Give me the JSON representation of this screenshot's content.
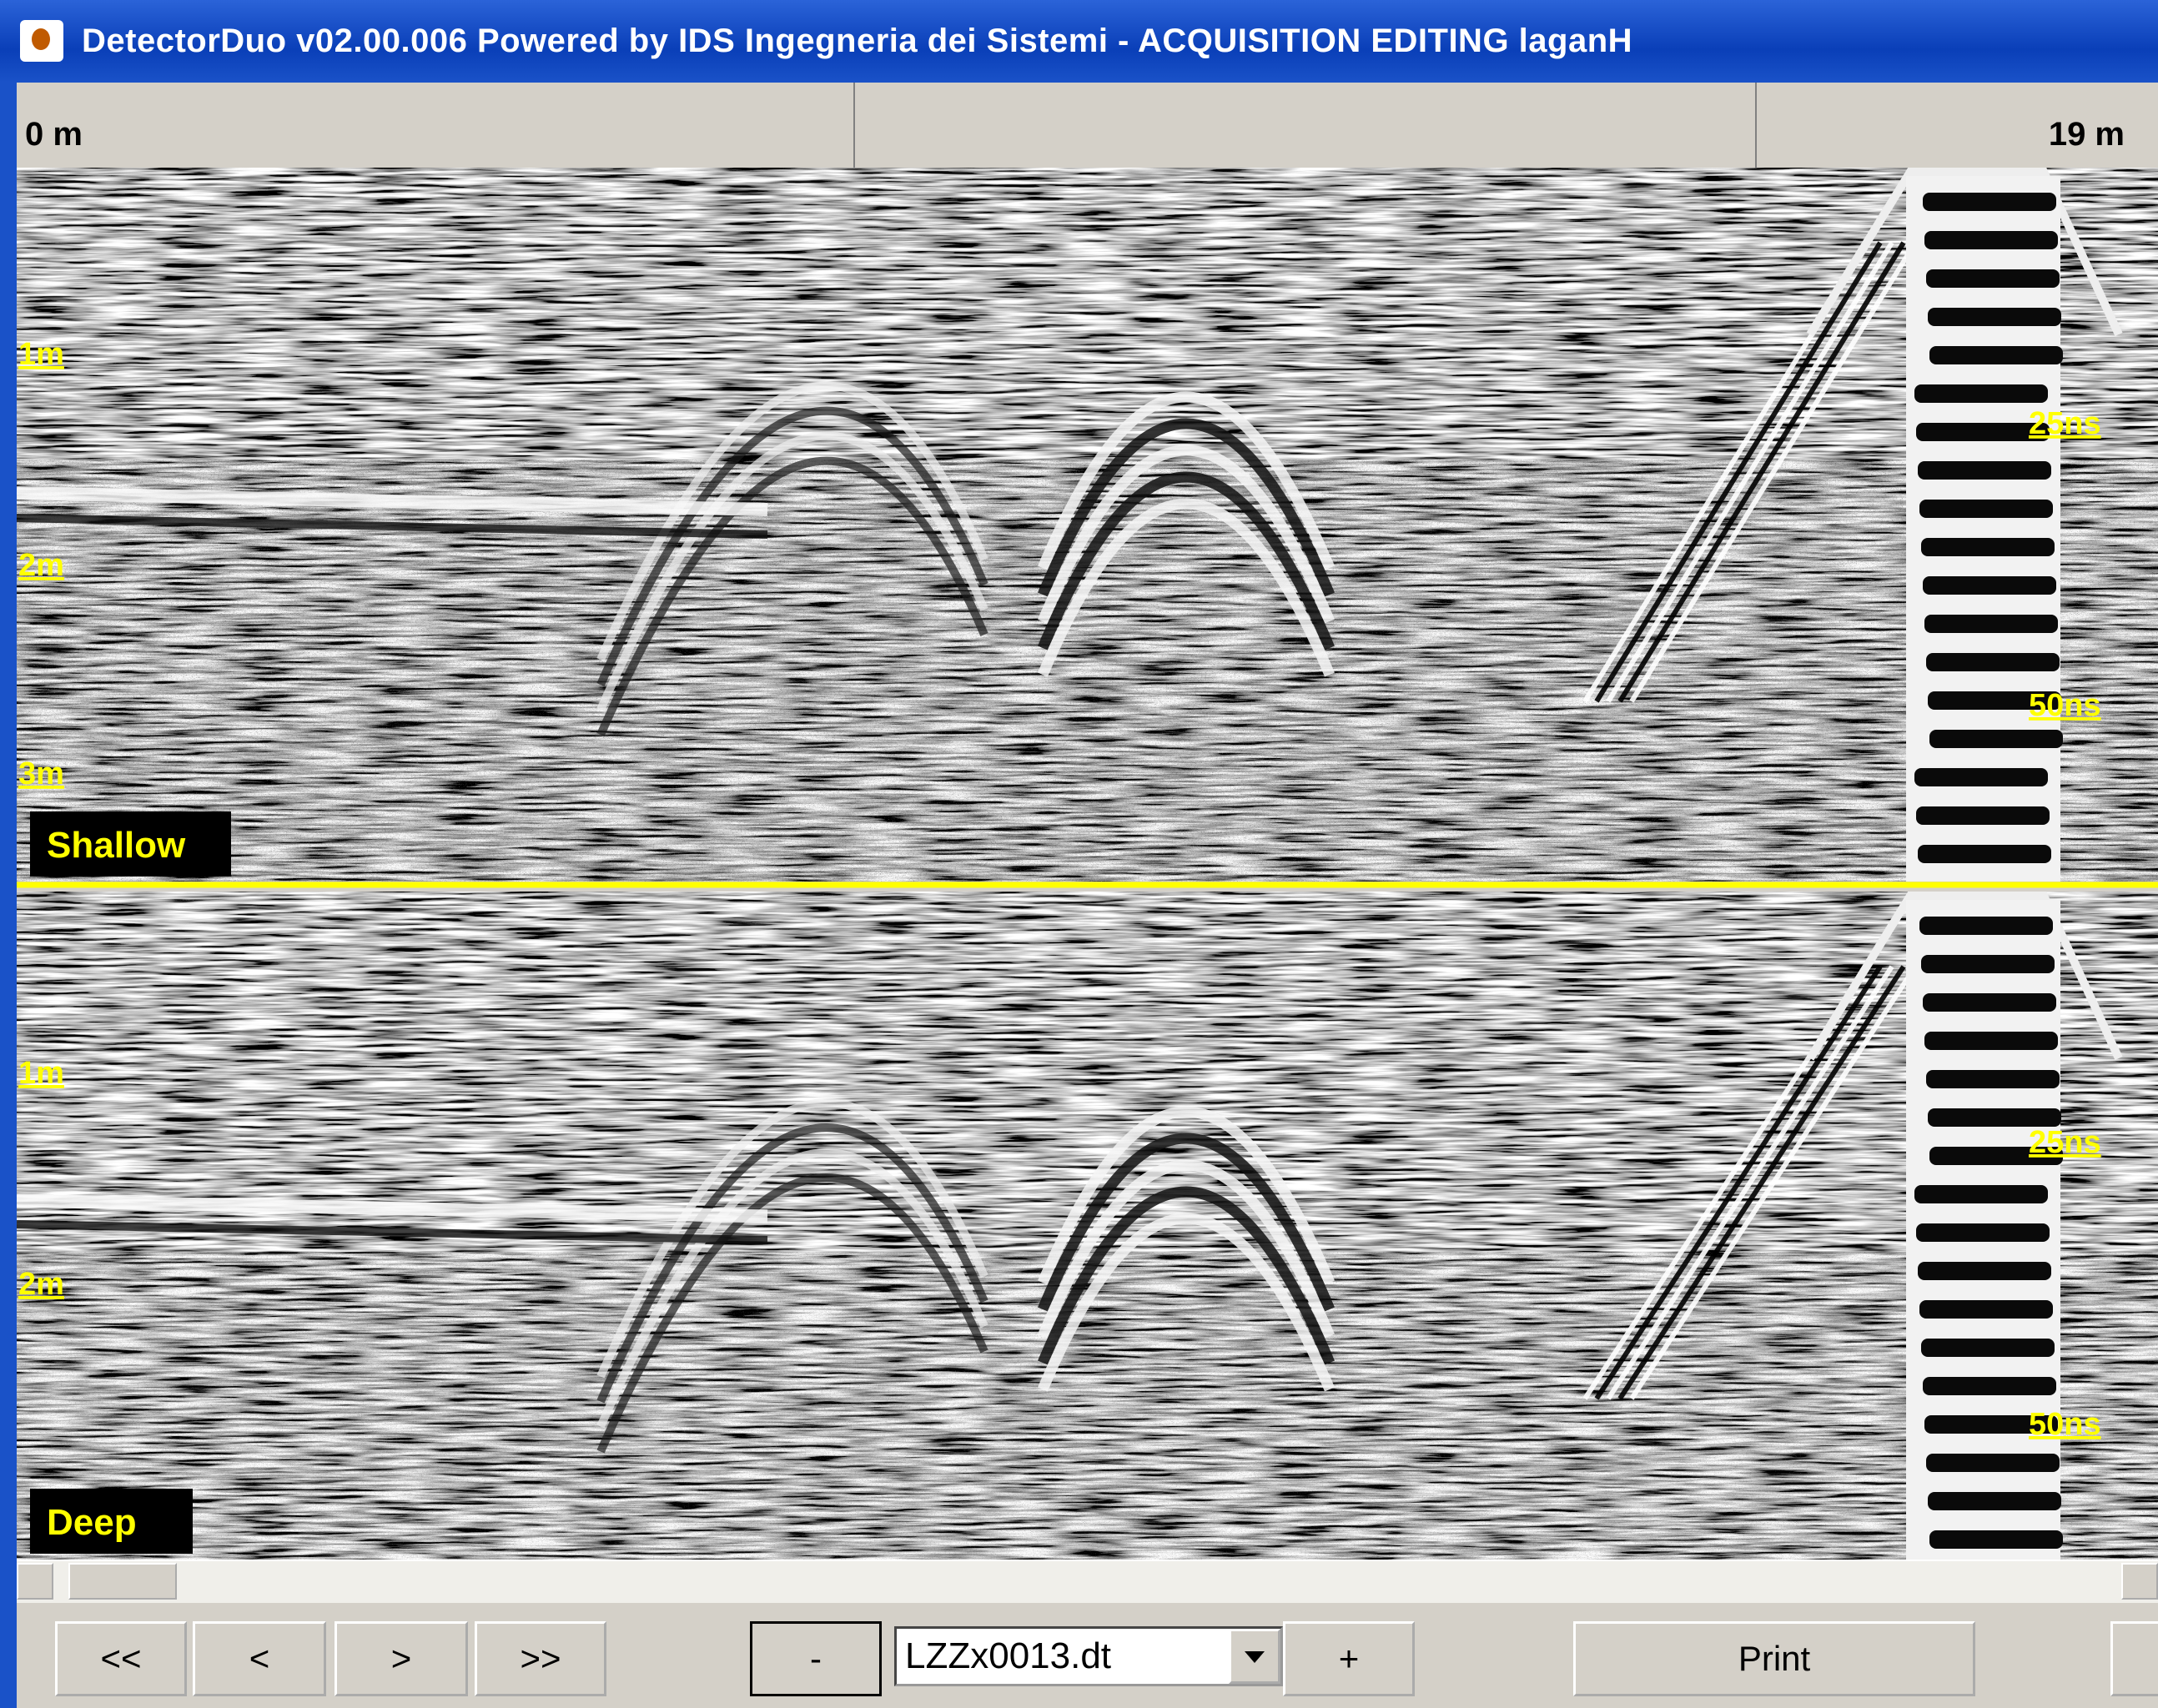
{
  "window": {
    "title": "DetectorDuo v02.00.006 Powered by IDS Ingegneria dei Sistemi - ACQUISITION EDITING  laganH"
  },
  "ruler": {
    "start": "0 m",
    "end": "19 m"
  },
  "panels": [
    {
      "label": "Shallow",
      "depth_labels": [
        "1m",
        "2m",
        "3m"
      ],
      "time_labels": [
        "25ns",
        "50ns"
      ]
    },
    {
      "label": "Deep",
      "depth_labels": [
        "1m",
        "2m"
      ],
      "time_labels": [
        "25ns",
        "50ns"
      ]
    }
  ],
  "toolbar": {
    "first": "<<",
    "previous": "<",
    "next": ">",
    "last": ">>",
    "zoom_out": "-",
    "file": "LZZx0013.dt",
    "zoom_in": "+",
    "print": "Print"
  }
}
